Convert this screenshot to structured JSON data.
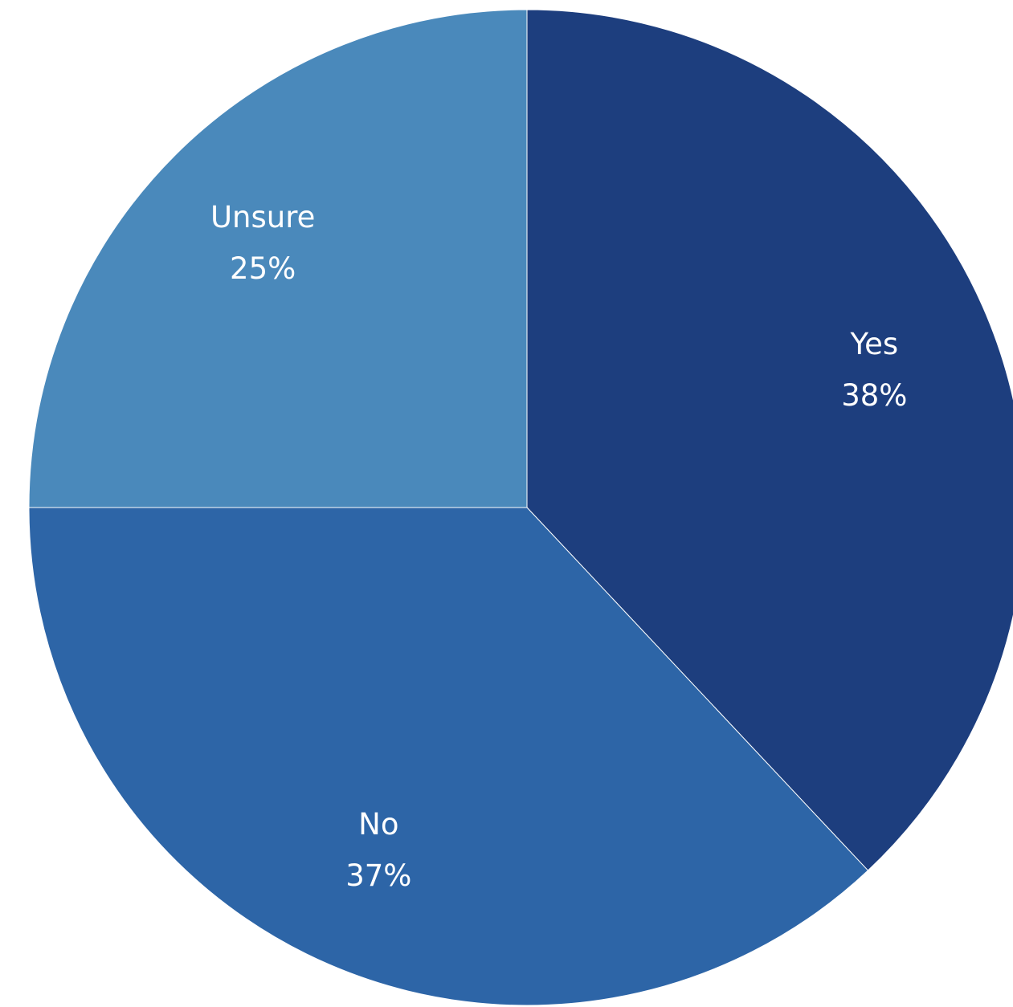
{
  "chart_data": {
    "type": "pie",
    "categories": [
      "Yes",
      "No",
      "Unsure"
    ],
    "values": [
      38,
      37,
      25
    ],
    "unit": "%",
    "data_labels": [
      "38%",
      "37%",
      "25%"
    ],
    "colors": [
      "#1d3e7e",
      "#2d65a7",
      "#4a89bb"
    ],
    "title": "",
    "legend": "none"
  }
}
